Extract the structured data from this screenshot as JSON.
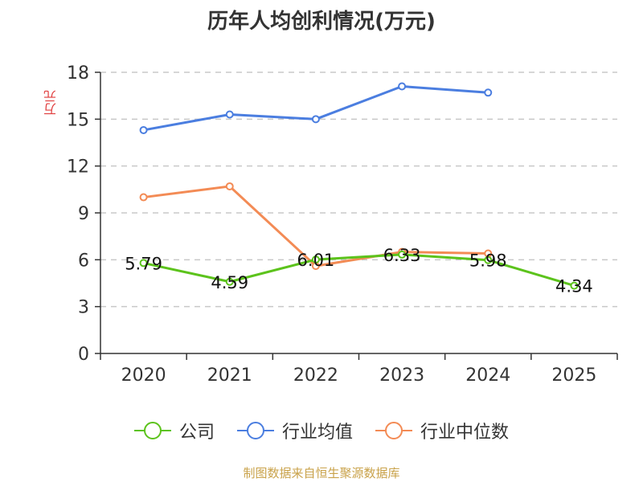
{
  "chart_data": {
    "type": "line",
    "title": "历年人均创利情况(万元)",
    "ylabel": "万元",
    "xlabel": "",
    "categories": [
      "2020",
      "2021",
      "2022",
      "2023",
      "2024",
      "2025"
    ],
    "ylim": [
      0,
      18
    ],
    "yticks": [
      0,
      3,
      6,
      9,
      12,
      15,
      18
    ],
    "grid": true,
    "legend_position": "bottom",
    "series": [
      {
        "name": "公司",
        "color": "#5cc31c",
        "values": [
          5.79,
          4.59,
          6.01,
          6.33,
          5.98,
          4.34
        ],
        "labels": [
          "5.79",
          "4.59",
          "6.01",
          "6.33",
          "5.98",
          "4.34"
        ]
      },
      {
        "name": "行业均值",
        "color": "#4b7ee0",
        "values": [
          14.3,
          15.3,
          15.0,
          17.1,
          16.7,
          null
        ]
      },
      {
        "name": "行业中位数",
        "color": "#f38b55",
        "values": [
          10.0,
          10.7,
          5.6,
          6.5,
          6.4,
          null
        ]
      }
    ]
  },
  "footer": "制图数据来自恒生聚源数据库"
}
